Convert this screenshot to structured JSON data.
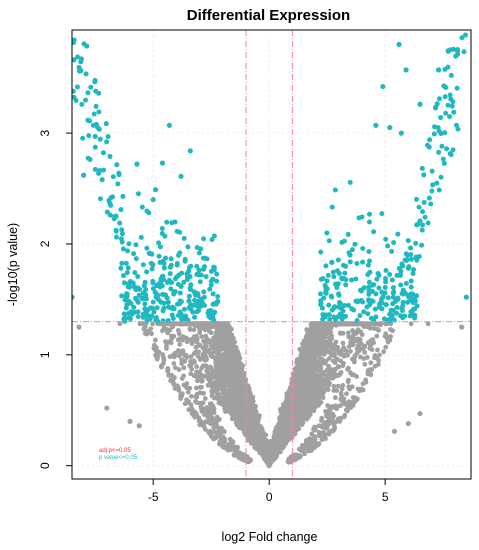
{
  "chart_data": {
    "type": "scatter",
    "title": "Differential Expression",
    "xlabel": "log2 Fold change",
    "ylabel": "-log10(p value)",
    "xlim": [
      -8.5,
      8.7
    ],
    "ylim": [
      -0.12,
      3.93
    ],
    "x_ticks": [
      -5,
      0,
      5
    ],
    "x_tick_labels": [
      "-5",
      "0",
      "5"
    ],
    "y_ticks": [
      0,
      1,
      2,
      3
    ],
    "y_tick_labels": [
      "0",
      "1",
      "2",
      "3"
    ],
    "grid": true,
    "legend_position": "bottom-left",
    "thresholds": {
      "p_value_line_y": 1.3,
      "fold_change_lines_x": [
        -1,
        1
      ]
    },
    "series": [
      {
        "name": "adj.p<=0.05",
        "color": "#ff3030",
        "values": []
      },
      {
        "name": "p value<=0.05",
        "color": "#20b8c0",
        "values": [
          {
            "x": -8.5,
            "y": 1.52
          },
          {
            "x": -8.0,
            "y": 2.62
          },
          {
            "x": -7.5,
            "y": 2.97
          },
          {
            "x": -7.2,
            "y": 2.58
          },
          {
            "x": -6.6,
            "y": 2.25
          },
          {
            "x": -5.7,
            "y": 2.72
          },
          {
            "x": -5.0,
            "y": 2.4
          },
          {
            "x": -4.3,
            "y": 3.07
          },
          {
            "x": -3.8,
            "y": 2.61
          },
          {
            "x": -3.4,
            "y": 2.84
          },
          {
            "x": -4.9,
            "y": 2.49
          },
          {
            "x": -4.6,
            "y": 2.73
          },
          {
            "x": 5.6,
            "y": 3.8
          },
          {
            "x": 5.9,
            "y": 3.57
          },
          {
            "x": 4.9,
            "y": 3.42
          },
          {
            "x": 7.3,
            "y": 3.57
          },
          {
            "x": 6.5,
            "y": 3.26
          },
          {
            "x": 4.6,
            "y": 3.07
          },
          {
            "x": 5.2,
            "y": 3.05
          },
          {
            "x": 5.7,
            "y": 3.0
          },
          {
            "x": 8.5,
            "y": 1.52
          }
        ]
      },
      {
        "name": "not significant",
        "color": "#a0a0a0",
        "values": [
          {
            "x": -7.0,
            "y": 0.52
          },
          {
            "x": -6.0,
            "y": 0.4
          },
          {
            "x": -5.6,
            "y": 0.36
          },
          {
            "x": 5.4,
            "y": 0.31
          },
          {
            "x": 6.0,
            "y": 0.38
          },
          {
            "x": 6.5,
            "y": 0.47
          },
          {
            "x": 0.0,
            "y": 0.0
          },
          {
            "x": -8.2,
            "y": 1.25
          },
          {
            "x": 8.3,
            "y": 1.25
          }
        ]
      }
    ],
    "legend": [
      {
        "label": "adj.p<=0.05",
        "color": "#ff3030"
      },
      {
        "label": "p value<=0.05",
        "color": "#20b8c0"
      }
    ]
  }
}
